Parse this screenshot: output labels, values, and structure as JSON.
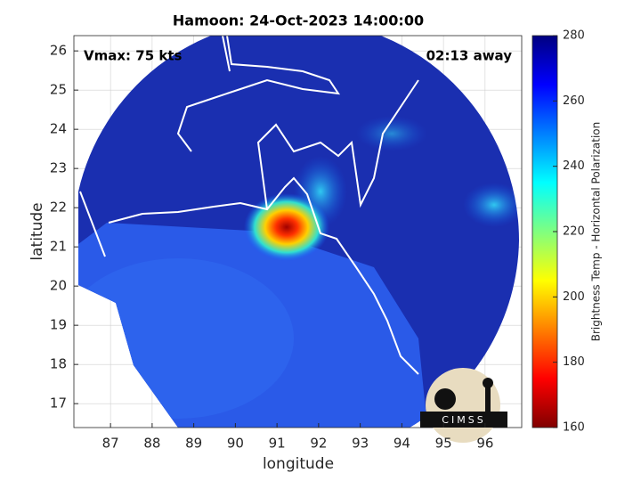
{
  "chart_data": {
    "type": "image",
    "title": "Hamoon: 24-Oct-2023 14:00:00",
    "annotations": [
      "Vmax: 75 kts",
      "02:13 away"
    ],
    "x_label": "longitude",
    "y_label": "latitude",
    "xlim": [
      86.12,
      96.88
    ],
    "xticks": [
      87,
      88,
      89,
      90,
      91,
      92,
      93,
      94,
      95,
      96
    ],
    "ylim": [
      16.39,
      26.39
    ],
    "yticks": [
      17,
      18,
      19,
      20,
      21,
      22,
      23,
      24,
      25,
      26
    ],
    "grid": true,
    "colorbar": {
      "label": "Brightness Temp - Horizontal Polarization",
      "lim": [
        160,
        280
      ],
      "ticks": [
        160,
        180,
        200,
        220,
        240,
        260,
        280
      ]
    },
    "logo": "CIMSS"
  }
}
